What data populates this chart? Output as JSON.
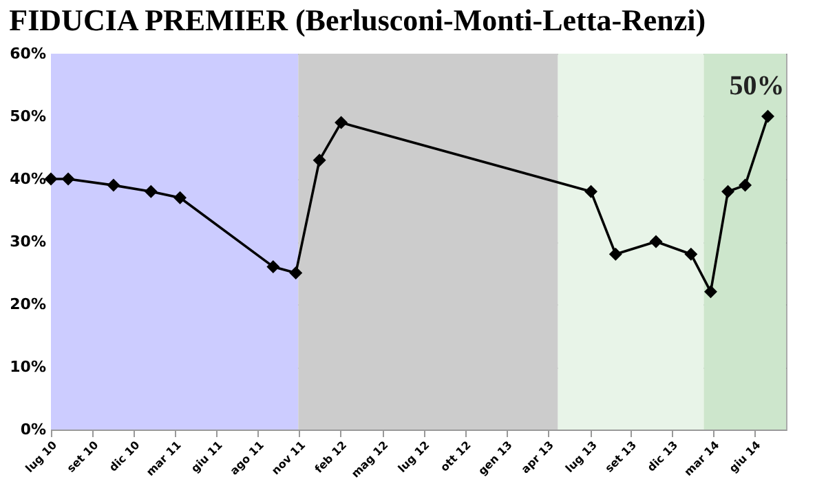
{
  "chart_data": {
    "type": "line",
    "title": "FIDUCIA PREMIER (Berlusconi-Monti-Letta-Renzi)",
    "x": [
      "2010-07-01",
      "2010-08-05",
      "2010-11-05",
      "2011-01-20",
      "2011-03-20",
      "2011-09-25",
      "2011-11-10",
      "2011-12-28",
      "2012-02-10",
      "2013-07-01",
      "2013-08-20",
      "2013-11-10",
      "2014-01-20",
      "2014-03-01",
      "2014-04-05",
      "2014-05-10",
      "2014-06-25"
    ],
    "series": [
      {
        "color": "#000000",
        "values": [
          40,
          40,
          39,
          38,
          37,
          26,
          25,
          43,
          49,
          38,
          28,
          30,
          28,
          22,
          38,
          39,
          50
        ]
      }
    ],
    "xlim": [
      "2010-07-01",
      "2014-08-01"
    ],
    "xticks": [
      {
        "value": "2010-07-01",
        "label": "lug 10"
      },
      {
        "value": "2010-09-23",
        "label": "set 10"
      },
      {
        "value": "2010-12-16",
        "label": "dic 10"
      },
      {
        "value": "2011-03-10",
        "label": "mar 11"
      },
      {
        "value": "2011-06-02",
        "label": "giu 11"
      },
      {
        "value": "2011-08-25",
        "label": "ago 11"
      },
      {
        "value": "2011-11-17",
        "label": "nov 11"
      },
      {
        "value": "2012-02-09",
        "label": "feb 12"
      },
      {
        "value": "2012-05-03",
        "label": "mag 12"
      },
      {
        "value": "2012-07-26",
        "label": "lug 12"
      },
      {
        "value": "2012-10-18",
        "label": "ott 12"
      },
      {
        "value": "2013-01-10",
        "label": "gen 13"
      },
      {
        "value": "2013-04-04",
        "label": "apr 13"
      },
      {
        "value": "2013-07-01",
        "label": "lug 13"
      },
      {
        "value": "2013-09-19",
        "label": "set 13"
      },
      {
        "value": "2013-12-12",
        "label": "dic 13"
      },
      {
        "value": "2014-03-06",
        "label": "mar 14"
      },
      {
        "value": "2014-05-29",
        "label": "giu 14"
      }
    ],
    "ylim": [
      0,
      60
    ],
    "yticks": [
      {
        "value": 0,
        "label": "0%"
      },
      {
        "value": 10,
        "label": "10%"
      },
      {
        "value": 20,
        "label": "20%"
      },
      {
        "value": 30,
        "label": "30%"
      },
      {
        "value": 40,
        "label": "40%"
      },
      {
        "value": 50,
        "label": "50%"
      },
      {
        "value": 60,
        "label": "60%"
      }
    ],
    "bands": [
      {
        "axis": "x",
        "from": "2010-07-01",
        "to": "2011-11-15",
        "color": "#ccccff"
      },
      {
        "axis": "x",
        "from": "2011-11-15",
        "to": "2013-04-25",
        "color": "#cccccc"
      },
      {
        "axis": "x",
        "from": "2013-04-25",
        "to": "2014-02-15",
        "color": "#e8f4e8"
      },
      {
        "axis": "x",
        "from": "2014-02-15",
        "to": "2014-08-01",
        "color": "#cde6cc"
      }
    ],
    "annotations": [
      {
        "text": "50%",
        "x": "2014-06-25",
        "y": 50
      }
    ],
    "grid": "y",
    "marker": "diamond",
    "line_style": "solid"
  }
}
